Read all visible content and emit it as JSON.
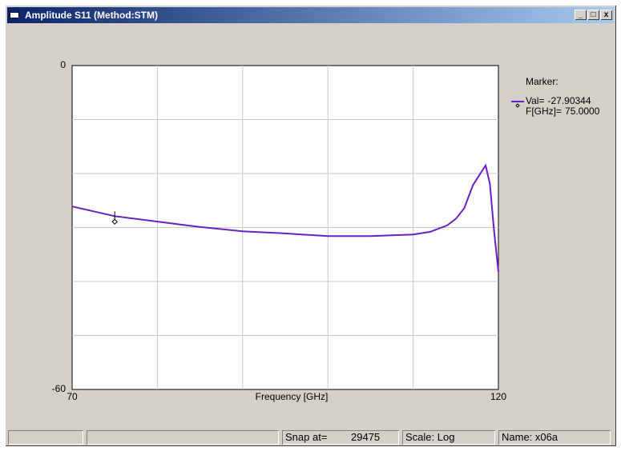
{
  "window": {
    "title": "Amplitude S11 (Method:STM)"
  },
  "chart_data": {
    "type": "line",
    "x_label": "Frequency [GHz]",
    "xlim": [
      70,
      120
    ],
    "xticks": [
      70,
      120
    ],
    "xgrid": [
      80,
      90,
      100,
      110
    ],
    "ylim": [
      -60,
      0
    ],
    "yticks": [
      0,
      -60
    ],
    "ygrid": [
      -10,
      -20,
      -30,
      -40,
      -50
    ],
    "grid": true,
    "series": [
      {
        "color": "#6a1fc4",
        "x": [
          70,
          75,
          80,
          85,
          90,
          95,
          100,
          105,
          110,
          112,
          114,
          115,
          116,
          117,
          118,
          118.5,
          119,
          119.5,
          120
        ],
        "values": [
          -26.1,
          -27.9,
          -28.9,
          -29.9,
          -30.7,
          -31.1,
          -31.6,
          -31.6,
          -31.3,
          -30.8,
          -29.6,
          -28.4,
          -26.4,
          -22.2,
          -19.7,
          -18.5,
          -21.9,
          -30.8,
          -38.2
        ]
      }
    ],
    "marker": {
      "title": "Marker:",
      "val_prefix": "Val=",
      "value": -27.90344,
      "f_prefix": "F[GHz]=",
      "x": {
        "value": 75,
        "label": "75.0000"
      }
    }
  },
  "status": {
    "snap_label": "Snap at=",
    "snap_value": "29475",
    "scale": "Scale: Log",
    "name": "Name: x06a"
  }
}
